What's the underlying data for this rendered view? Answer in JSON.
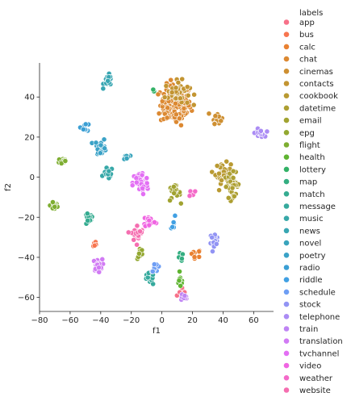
{
  "chart_data": {
    "type": "scatter",
    "title": "",
    "xlabel": "f1",
    "ylabel": "f2",
    "xlim": [
      -80,
      73
    ],
    "ylim": [
      -67,
      57
    ],
    "xticks": [
      -80,
      -60,
      -40,
      -20,
      0,
      20,
      40,
      60
    ],
    "yticks": [
      -60,
      -40,
      -20,
      0,
      20,
      40
    ],
    "grid": false,
    "legend": {
      "title": "labels",
      "placement": "right-outside"
    },
    "series": [
      {
        "name": "app",
        "color": "#f77189",
        "clusters": [
          {
            "x": 14,
            "y": -58,
            "sx": 2,
            "sy": 2,
            "n": 8
          }
        ]
      },
      {
        "name": "bus",
        "color": "#f7754f",
        "clusters": [
          {
            "x": -44,
            "y": -33,
            "sx": 1,
            "sy": 1,
            "n": 6
          }
        ]
      },
      {
        "name": "calc",
        "color": "#e98132",
        "clusters": [
          {
            "x": 22,
            "y": -38,
            "sx": 2,
            "sy": 1,
            "n": 8
          }
        ]
      },
      {
        "name": "chat",
        "color": "#dc8932",
        "clusters": [
          {
            "x": 9,
            "y": 36,
            "sx": 5,
            "sy": 5,
            "n": 150
          }
        ]
      },
      {
        "name": "cinemas",
        "color": "#ce8f31",
        "clusters": [
          {
            "x": 36,
            "y": 30,
            "sx": 1.5,
            "sy": 1.5,
            "n": 18
          }
        ]
      },
      {
        "name": "contacts",
        "color": "#c39532",
        "clusters": [
          {
            "x": 10,
            "y": 42,
            "sx": 4,
            "sy": 3,
            "n": 45
          }
        ]
      },
      {
        "name": "cookbook",
        "color": "#b99a32",
        "clusters": [
          {
            "x": 40,
            "y": 2,
            "sx": 2.5,
            "sy": 2.5,
            "n": 35
          }
        ]
      },
      {
        "name": "datetime",
        "color": "#ad9f32",
        "clusters": [
          {
            "x": 46,
            "y": -4,
            "sx": 2.5,
            "sy": 3,
            "n": 40
          }
        ]
      },
      {
        "name": "email",
        "color": "#a1a331",
        "clusters": [
          {
            "x": 8,
            "y": -8,
            "sx": 2,
            "sy": 2,
            "n": 18
          }
        ]
      },
      {
        "name": "epg",
        "color": "#93a831",
        "clusters": [
          {
            "x": -14,
            "y": -38,
            "sx": 1,
            "sy": 1.5,
            "n": 8
          }
        ]
      },
      {
        "name": "flight",
        "color": "#7eae31",
        "clusters": [
          {
            "x": -65,
            "y": 8,
            "sx": 1.5,
            "sy": 1,
            "n": 14
          },
          {
            "x": -70,
            "y": -14,
            "sx": 1.5,
            "sy": 1.5,
            "n": 16
          }
        ]
      },
      {
        "name": "health",
        "color": "#5fb431",
        "clusters": [
          {
            "x": 12,
            "y": -52,
            "sx": 1,
            "sy": 1.5,
            "n": 10
          }
        ]
      },
      {
        "name": "lottery",
        "color": "#32b166",
        "clusters": [
          {
            "x": -5,
            "y": 43,
            "sx": 1,
            "sy": 1,
            "n": 2
          }
        ]
      },
      {
        "name": "map",
        "color": "#34ae81",
        "clusters": [
          {
            "x": 12,
            "y": -40,
            "sx": 1,
            "sy": 1,
            "n": 8
          }
        ]
      },
      {
        "name": "match",
        "color": "#35ac91",
        "clusters": [
          {
            "x": -48,
            "y": -21,
            "sx": 1.5,
            "sy": 1.5,
            "n": 16
          }
        ]
      },
      {
        "name": "message",
        "color": "#36aa9d",
        "clusters": [
          {
            "x": -8,
            "y": -51,
            "sx": 1.5,
            "sy": 1.5,
            "n": 14
          }
        ]
      },
      {
        "name": "music",
        "color": "#37a8a8",
        "clusters": [
          {
            "x": -35,
            "y": 2,
            "sx": 1.5,
            "sy": 1.5,
            "n": 14
          }
        ]
      },
      {
        "name": "news",
        "color": "#38a6b2",
        "clusters": [
          {
            "x": -35,
            "y": 48,
            "sx": 1.5,
            "sy": 1.5,
            "n": 20
          }
        ]
      },
      {
        "name": "novel",
        "color": "#39a4bc",
        "clusters": [
          {
            "x": -23,
            "y": 10,
            "sx": 1,
            "sy": 1,
            "n": 8
          }
        ]
      },
      {
        "name": "poetry",
        "color": "#3aa2c7",
        "clusters": [
          {
            "x": -40,
            "y": 15,
            "sx": 2,
            "sy": 2,
            "n": 22
          }
        ]
      },
      {
        "name": "radio",
        "color": "#3b9fd4",
        "clusters": [
          {
            "x": -50,
            "y": 25,
            "sx": 1.5,
            "sy": 1,
            "n": 8
          }
        ]
      },
      {
        "name": "riddle",
        "color": "#41a0e3",
        "clusters": [
          {
            "x": 8,
            "y": -24,
            "sx": 1,
            "sy": 2,
            "n": 6
          }
        ]
      },
      {
        "name": "schedule",
        "color": "#6e9ef4",
        "clusters": [
          {
            "x": -4,
            "y": -45,
            "sx": 1.5,
            "sy": 1,
            "n": 10
          }
        ]
      },
      {
        "name": "stock",
        "color": "#9294f4",
        "clusters": [
          {
            "x": 34,
            "y": -31,
            "sx": 1.5,
            "sy": 1.5,
            "n": 20
          }
        ]
      },
      {
        "name": "telephone",
        "color": "#ab8cf4",
        "clusters": [
          {
            "x": 64,
            "y": 22,
            "sx": 1.5,
            "sy": 1,
            "n": 18
          }
        ]
      },
      {
        "name": "train",
        "color": "#bf84f4",
        "clusters": [
          {
            "x": 14,
            "y": -60,
            "sx": 1.5,
            "sy": 1,
            "n": 10
          }
        ]
      },
      {
        "name": "translation",
        "color": "#d17bf4",
        "clusters": [
          {
            "x": -42,
            "y": -44,
            "sx": 1.5,
            "sy": 1.5,
            "n": 22
          }
        ]
      },
      {
        "name": "tvchannel",
        "color": "#e36ff4",
        "clusters": [
          {
            "x": -14,
            "y": -3,
            "sx": 2.5,
            "sy": 3,
            "n": 55
          }
        ]
      },
      {
        "name": "video",
        "color": "#f065e2",
        "clusters": [
          {
            "x": -8,
            "y": -22,
            "sx": 2,
            "sy": 1.5,
            "n": 22
          }
        ]
      },
      {
        "name": "weather",
        "color": "#f46ac9",
        "clusters": [
          {
            "x": 20,
            "y": -8,
            "sx": 1.5,
            "sy": 1,
            "n": 6
          }
        ]
      },
      {
        "name": "website",
        "color": "#f56eb0",
        "clusters": [
          {
            "x": -16,
            "y": -28,
            "sx": 2,
            "sy": 2,
            "n": 30
          }
        ]
      }
    ]
  }
}
